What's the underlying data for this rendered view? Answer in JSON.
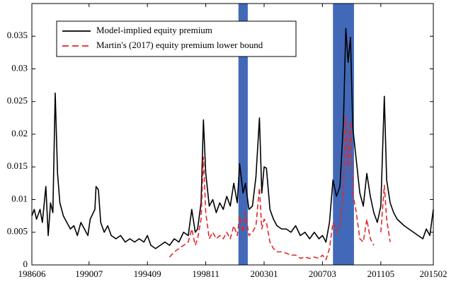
{
  "chart_data": {
    "type": "line",
    "x": [
      "1986-06",
      "1986-08",
      "1986-10",
      "1987-01",
      "1987-03",
      "1987-06",
      "1987-08",
      "1987-10",
      "1987-12",
      "1988-02",
      "1988-04",
      "1988-06",
      "1988-09",
      "1988-12",
      "1989-03",
      "1989-06",
      "1989-09",
      "1989-12",
      "1990-03",
      "1990-06",
      "1990-08",
      "1990-12",
      "1991-01",
      "1991-03",
      "1991-05",
      "1991-08",
      "1991-11",
      "1992-02",
      "1992-06",
      "1992-10",
      "1993-02",
      "1993-06",
      "1993-10",
      "1994-02",
      "1994-06",
      "1994-09",
      "1994-12",
      "1995-04",
      "1995-08",
      "1995-12",
      "1996-04",
      "1996-08",
      "1996-12",
      "1997-04",
      "1997-08",
      "1997-11",
      "1998-02",
      "1998-04",
      "1998-07",
      "1998-09",
      "1998-11",
      "1999-02",
      "1999-05",
      "1999-08",
      "1999-11",
      "2000-02",
      "2000-05",
      "2000-08",
      "2000-11",
      "2001-02",
      "2001-04",
      "2001-07",
      "2001-09",
      "2001-12",
      "2002-03",
      "2002-06",
      "2002-09",
      "2002-11",
      "2003-01",
      "2003-03",
      "2003-06",
      "2003-09",
      "2003-12",
      "2004-04",
      "2004-08",
      "2004-12",
      "2005-04",
      "2005-08",
      "2005-12",
      "2006-04",
      "2006-08",
      "2006-12",
      "2007-03",
      "2007-06",
      "2007-09",
      "2007-12",
      "2008-03",
      "2008-06",
      "2008-09",
      "2008-11",
      "2009-01",
      "2009-03",
      "2009-05",
      "2009-08",
      "2009-11",
      "2010-02",
      "2010-05",
      "2010-08",
      "2010-11",
      "2011-02",
      "2011-05",
      "2011-08",
      "2011-10",
      "2012-01",
      "2012-04",
      "2012-07",
      "2012-10",
      "2013-01",
      "2013-05",
      "2013-09",
      "2014-01",
      "2014-05",
      "2014-08",
      "2014-11",
      "2015-02"
    ],
    "series": [
      {
        "name": "Model-implied equity premium",
        "color": "#000000",
        "dash": false,
        "values": [
          0.0075,
          0.0085,
          0.007,
          0.0085,
          0.0065,
          0.012,
          0.0045,
          0.0095,
          0.008,
          0.0263,
          0.014,
          0.0095,
          0.0075,
          0.0065,
          0.0055,
          0.006,
          0.0045,
          0.0065,
          0.0055,
          0.0045,
          0.007,
          0.0085,
          0.012,
          0.0115,
          0.0065,
          0.005,
          0.006,
          0.0045,
          0.004,
          0.0045,
          0.0035,
          0.004,
          0.0035,
          0.004,
          0.0035,
          0.0045,
          0.003,
          0.0025,
          0.003,
          0.0035,
          0.003,
          0.004,
          0.0035,
          0.005,
          0.0045,
          0.0085,
          0.005,
          0.0055,
          0.0095,
          0.0222,
          0.014,
          0.009,
          0.01,
          0.008,
          0.0095,
          0.0085,
          0.0105,
          0.009,
          0.0125,
          0.0095,
          0.0155,
          0.011,
          0.0125,
          0.0085,
          0.009,
          0.0135,
          0.0225,
          0.011,
          0.015,
          0.0148,
          0.0085,
          0.007,
          0.006,
          0.0055,
          0.0055,
          0.005,
          0.006,
          0.0045,
          0.005,
          0.004,
          0.005,
          0.004,
          0.0045,
          0.0035,
          0.0065,
          0.013,
          0.0105,
          0.012,
          0.022,
          0.0362,
          0.031,
          0.0348,
          0.021,
          0.016,
          0.011,
          0.009,
          0.014,
          0.0105,
          0.008,
          0.0065,
          0.009,
          0.0258,
          0.013,
          0.0095,
          0.008,
          0.007,
          0.0065,
          0.006,
          0.0055,
          0.005,
          0.0045,
          0.004,
          0.0055,
          0.0045,
          0.0085
        ]
      },
      {
        "name": "Martin's (2017) equity premium lower bound",
        "color": "#e3262b",
        "dash": true,
        "values": [
          null,
          null,
          null,
          null,
          null,
          null,
          null,
          null,
          null,
          null,
          null,
          null,
          null,
          null,
          null,
          null,
          null,
          null,
          null,
          null,
          null,
          null,
          null,
          null,
          null,
          null,
          null,
          null,
          null,
          null,
          null,
          null,
          null,
          null,
          null,
          null,
          null,
          null,
          null,
          null,
          0.0012,
          0.002,
          0.0025,
          0.003,
          0.0035,
          0.0055,
          0.003,
          0.004,
          0.007,
          0.0165,
          0.008,
          0.004,
          0.005,
          0.004,
          0.0045,
          0.004,
          0.005,
          0.004,
          0.006,
          0.0045,
          0.0075,
          0.005,
          0.008,
          0.0045,
          0.005,
          0.006,
          0.0118,
          0.0055,
          0.007,
          0.0065,
          0.0035,
          0.0025,
          0.002,
          0.002,
          0.0018,
          0.0015,
          0.0015,
          0.001,
          0.0012,
          0.001,
          0.0012,
          0.001,
          0.0015,
          0.0008,
          0.0025,
          0.0065,
          0.005,
          0.006,
          0.0115,
          0.0228,
          0.015,
          0.022,
          0.011,
          0.008,
          0.004,
          0.0035,
          0.007,
          0.004,
          0.003,
          null,
          0.005,
          0.0122,
          0.007,
          0.0035,
          null,
          null,
          null,
          null,
          null,
          null,
          null,
          null,
          null,
          null,
          null
        ]
      }
    ],
    "shaded_regions": [
      {
        "start": "2001-03",
        "end": "2001-11"
      },
      {
        "start": "2007-12",
        "end": "2009-06"
      }
    ],
    "shade_color": "#4169b8",
    "xlim": [
      "1986-06",
      "2015-02"
    ],
    "xticks": [
      {
        "value": "1986-06",
        "label": "198606"
      },
      {
        "value": "1990-07",
        "label": "199007"
      },
      {
        "value": "1994-09",
        "label": "199409"
      },
      {
        "value": "1998-11",
        "label": "199811"
      },
      {
        "value": "2003-01",
        "label": "200301"
      },
      {
        "value": "2007-03",
        "label": "200703"
      },
      {
        "value": "2011-05",
        "label": "201105"
      },
      {
        "value": "2015-02",
        "label": "201502"
      }
    ],
    "ylim": [
      0,
      0.04
    ],
    "yticks": [
      0,
      0.005,
      0.01,
      0.015,
      0.02,
      0.025,
      0.03,
      0.035
    ],
    "grid": false,
    "legend": "upper left"
  }
}
